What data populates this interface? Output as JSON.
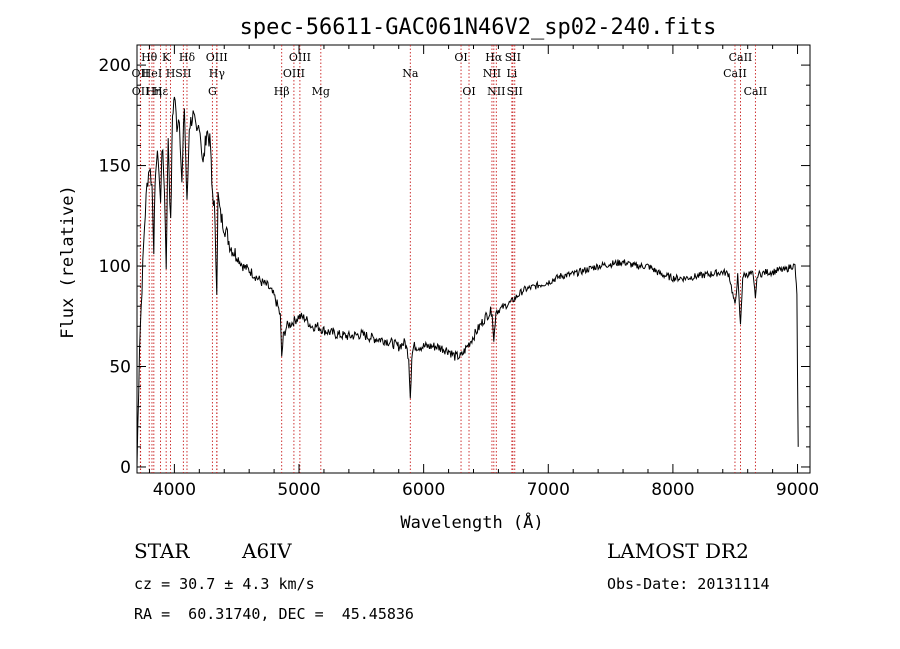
{
  "chart_data": {
    "type": "line",
    "title": "spec-56611-GAC061N46V2_sp02-240.fits",
    "xlabel": "Wavelength (Å)",
    "ylabel": "Flux (relative)",
    "xlim": [
      3700,
      9100
    ],
    "ylim": [
      -3,
      210
    ],
    "x_ticks": [
      4000,
      5000,
      6000,
      7000,
      8000,
      9000
    ],
    "y_ticks": [
      0,
      50,
      100,
      150,
      200
    ],
    "grid": false,
    "series": [
      {
        "x": [
          3700,
          3720,
          3740,
          3760,
          3780,
          3800,
          3820,
          3835,
          3850,
          3870,
          3889,
          3900,
          3920,
          3934,
          3950,
          3970,
          3985,
          4000,
          4020,
          4040,
          4060,
          4080,
          4101,
          4120,
          4150,
          4180,
          4200,
          4230,
          4260,
          4290,
          4300,
          4320,
          4340,
          4350,
          4370,
          4400,
          4450,
          4500,
          4550,
          4600,
          4650,
          4700,
          4750,
          4800,
          4830,
          4850,
          4861,
          4875,
          4900,
          4950,
          5000,
          5050,
          5100,
          5150,
          5200,
          5300,
          5400,
          5500,
          5600,
          5700,
          5800,
          5850,
          5880,
          5893,
          5905,
          5920,
          6000,
          6100,
          6200,
          6250,
          6300,
          6350,
          6400,
          6450,
          6500,
          6550,
          6563,
          6580,
          6600,
          6650,
          6700,
          6750,
          6800,
          6900,
          7000,
          7100,
          7200,
          7300,
          7400,
          7500,
          7600,
          7700,
          7800,
          7900,
          8000,
          8100,
          8200,
          8300,
          8400,
          8450,
          8498,
          8520,
          8542,
          8560,
          8600,
          8640,
          8662,
          8680,
          8700,
          8750,
          8800,
          8850,
          8900,
          8950,
          8980,
          8995,
          9005
        ],
        "y": [
          0,
          60,
          90,
          120,
          140,
          150,
          140,
          110,
          150,
          155,
          130,
          160,
          140,
          100,
          165,
          120,
          175,
          185,
          170,
          175,
          140,
          180,
          130,
          170,
          175,
          165,
          172,
          150,
          168,
          160,
          140,
          130,
          90,
          135,
          125,
          120,
          110,
          105,
          100,
          98,
          95,
          92,
          90,
          85,
          80,
          75,
          55,
          65,
          70,
          72,
          75,
          74,
          70,
          70,
          68,
          66,
          65,
          66,
          64,
          63,
          60,
          62,
          55,
          35,
          55,
          60,
          60,
          60,
          58,
          55,
          55,
          60,
          65,
          70,
          75,
          78,
          62,
          78,
          78,
          80,
          82,
          85,
          88,
          90,
          92,
          95,
          96,
          98,
          100,
          101,
          102,
          100,
          100,
          96,
          94,
          94,
          95,
          96,
          97,
          96,
          80,
          95,
          70,
          95,
          96,
          96,
          85,
          96,
          96,
          97,
          97,
          98,
          98,
          100,
          100,
          85,
          10
        ]
      }
    ],
    "lines": [
      {
        "label": "Hθ",
        "row": 0,
        "x": 3798
      },
      {
        "label": "OII",
        "row": 1,
        "x": 3727
      },
      {
        "label": "OII",
        "row": 2,
        "x": 3729
      },
      {
        "label": "HeI",
        "row": 1,
        "x": 3820
      },
      {
        "label": "Hη",
        "row": 2,
        "x": 3835
      },
      {
        "label": "Hε",
        "row": 2,
        "x": 3889
      },
      {
        "label": "K",
        "row": 0,
        "x": 3934
      },
      {
        "label": "H",
        "row": 1,
        "x": 3969
      },
      {
        "label": "SII",
        "row": 1,
        "x": 4072
      },
      {
        "label": "Hδ",
        "row": 0,
        "x": 4101
      },
      {
        "label": "OIII",
        "row": 0,
        "x": 4340
      },
      {
        "label": "Hγ",
        "row": 1,
        "x": 4341
      },
      {
        "label": "G",
        "row": 2,
        "x": 4305
      },
      {
        "label": "Hβ",
        "row": 2,
        "x": 4861
      },
      {
        "label": "OIII",
        "row": 0,
        "x": 5007
      },
      {
        "label": "OIII",
        "row": 1,
        "x": 4959
      },
      {
        "label": "Mg",
        "row": 2,
        "x": 5175
      },
      {
        "label": "Na",
        "row": 1,
        "x": 5893
      },
      {
        "label": "OI",
        "row": 0,
        "x": 6300
      },
      {
        "label": "OI",
        "row": 2,
        "x": 6364
      },
      {
        "label": "Hα",
        "row": 0,
        "x": 6563
      },
      {
        "label": "NII",
        "row": 1,
        "x": 6548
      },
      {
        "label": "NII",
        "row": 2,
        "x": 6583
      },
      {
        "label": "SII",
        "row": 0,
        "x": 6716
      },
      {
        "label": "Li",
        "row": 1,
        "x": 6708
      },
      {
        "label": "SII",
        "row": 2,
        "x": 6731
      },
      {
        "label": "CaII",
        "row": 0,
        "x": 8542
      },
      {
        "label": "CaII",
        "row": 1,
        "x": 8498
      },
      {
        "label": "CaII",
        "row": 2,
        "x": 8662
      }
    ]
  },
  "info": {
    "class": "STAR",
    "subclass": "A6IV",
    "survey": "LAMOST DR2",
    "redshift": "cz = 30.7 ± 4.3 km/s",
    "obs_date": "Obs-Date: 20131114",
    "coords": "RA =  60.31740, DEC =  45.45836"
  }
}
